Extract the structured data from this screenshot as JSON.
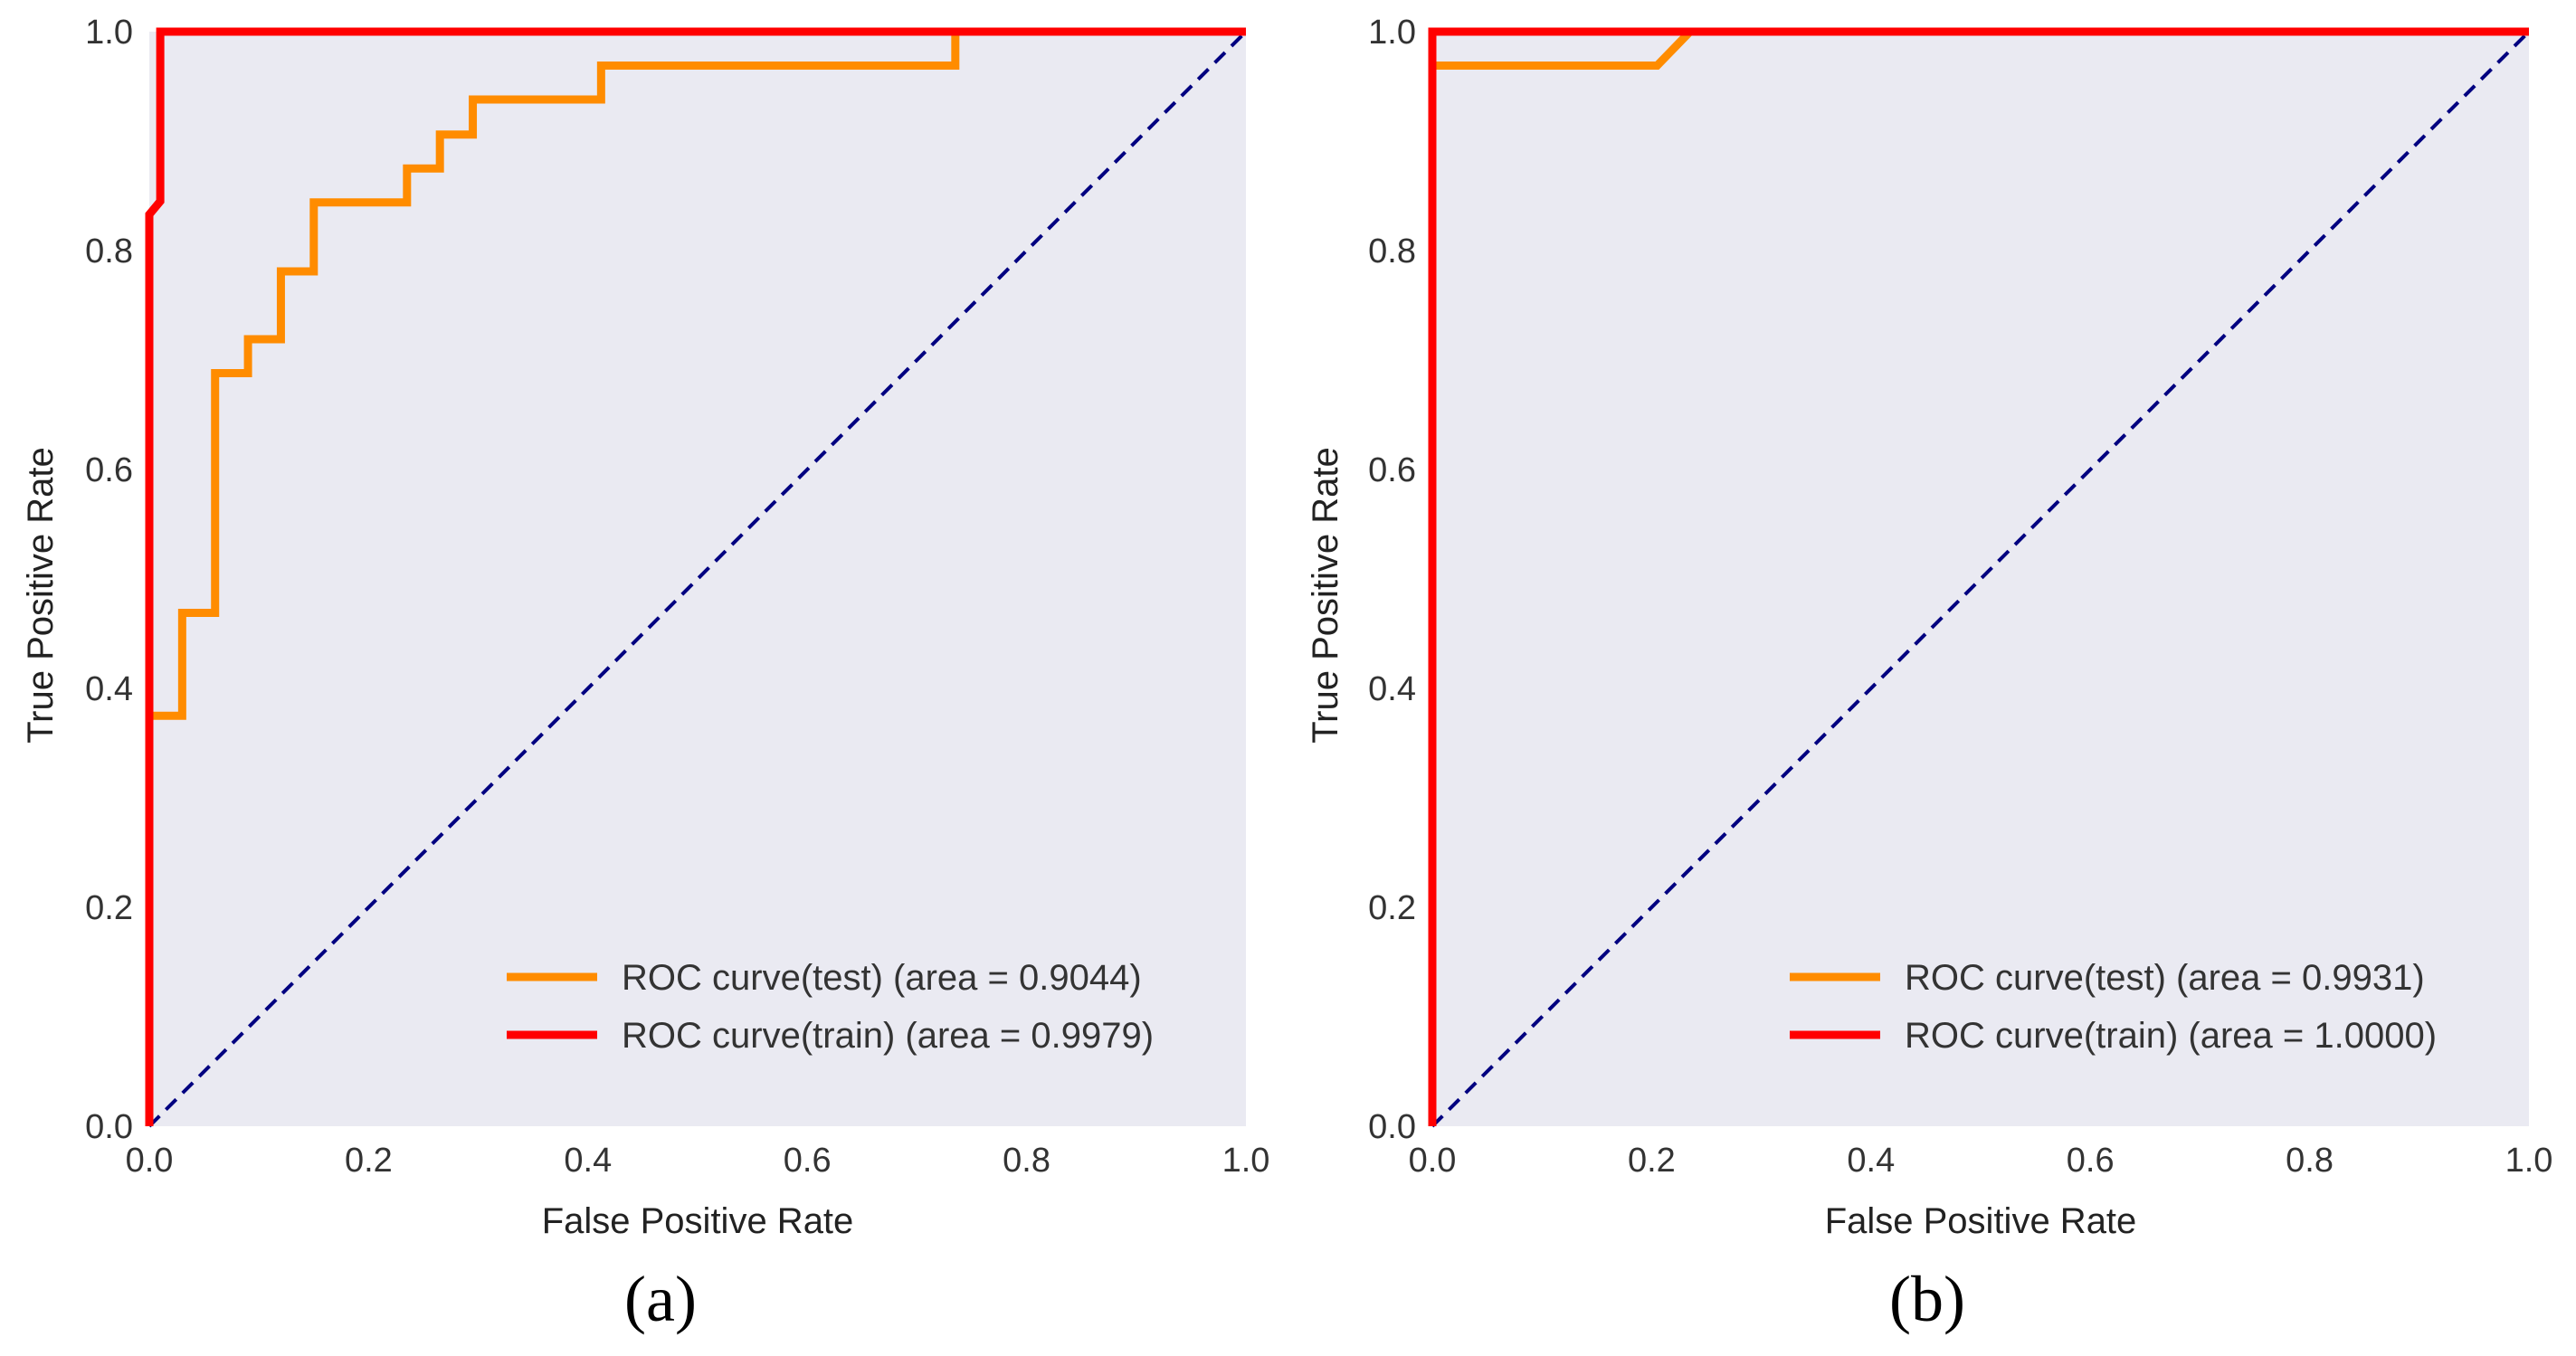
{
  "chart_data": [
    {
      "type": "line",
      "panel_label": "(a)",
      "xlabel": "False Positive Rate",
      "ylabel": "True Positive Rate",
      "xlim": [
        0.0,
        1.0
      ],
      "ylim": [
        0.0,
        1.0
      ],
      "xticks": [
        "0.0",
        "0.2",
        "0.4",
        "0.6",
        "0.8",
        "1.0"
      ],
      "yticks": [
        "0.0",
        "0.2",
        "0.4",
        "0.6",
        "0.8",
        "1.0"
      ],
      "grid": false,
      "legend_position": "lower-right",
      "series": [
        {
          "name": "ROC curve(test) (area = 0.9044)",
          "color": "#ff8c00",
          "points": [
            [
              0.0,
              0.0
            ],
            [
              0.0,
              0.375
            ],
            [
              0.03,
              0.375
            ],
            [
              0.03,
              0.469
            ],
            [
              0.06,
              0.469
            ],
            [
              0.06,
              0.688
            ],
            [
              0.09,
              0.688
            ],
            [
              0.09,
              0.719
            ],
            [
              0.12,
              0.719
            ],
            [
              0.12,
              0.781
            ],
            [
              0.15,
              0.781
            ],
            [
              0.15,
              0.844
            ],
            [
              0.235,
              0.844
            ],
            [
              0.235,
              0.875
            ],
            [
              0.265,
              0.875
            ],
            [
              0.265,
              0.906
            ],
            [
              0.295,
              0.906
            ],
            [
              0.295,
              0.938
            ],
            [
              0.412,
              0.938
            ],
            [
              0.412,
              0.969
            ],
            [
              0.735,
              0.969
            ],
            [
              0.735,
              1.0
            ],
            [
              1.0,
              1.0
            ]
          ]
        },
        {
          "name": "ROC curve(train) (area = 0.9979)",
          "color": "#ff0000",
          "points": [
            [
              0.0,
              0.0
            ],
            [
              0.0,
              0.833
            ],
            [
              0.01,
              0.845
            ],
            [
              0.01,
              1.0
            ],
            [
              1.0,
              1.0
            ]
          ]
        },
        {
          "name": "chance",
          "color": "#000080",
          "style": "dashed",
          "points": [
            [
              0.0,
              0.0
            ],
            [
              1.0,
              1.0
            ]
          ]
        }
      ]
    },
    {
      "type": "line",
      "panel_label": "(b)",
      "xlabel": "False Positive Rate",
      "ylabel": "True Positive Rate",
      "xlim": [
        0.0,
        1.0
      ],
      "ylim": [
        0.0,
        1.0
      ],
      "xticks": [
        "0.0",
        "0.2",
        "0.4",
        "0.6",
        "0.8",
        "1.0"
      ],
      "yticks": [
        "0.0",
        "0.2",
        "0.4",
        "0.6",
        "0.8",
        "1.0"
      ],
      "grid": false,
      "legend_position": "lower-right",
      "series": [
        {
          "name": "ROC curve(test) (area = 0.9931)",
          "color": "#ff8c00",
          "points": [
            [
              0.0,
              0.0
            ],
            [
              0.0,
              0.969
            ],
            [
              0.205,
              0.969
            ],
            [
              0.235,
              1.0
            ],
            [
              1.0,
              1.0
            ]
          ]
        },
        {
          "name": "ROC curve(train) (area = 1.0000)",
          "color": "#ff0000",
          "points": [
            [
              0.0,
              0.0
            ],
            [
              0.0,
              1.0
            ],
            [
              1.0,
              1.0
            ]
          ]
        },
        {
          "name": "chance",
          "color": "#000080",
          "style": "dashed",
          "points": [
            [
              0.0,
              0.0
            ],
            [
              1.0,
              1.0
            ]
          ]
        }
      ]
    }
  ],
  "colors": {
    "plot_background": "#eaeaf2",
    "test_curve": "#ff8c00",
    "train_curve": "#ff0000",
    "chance_line": "#000080"
  }
}
